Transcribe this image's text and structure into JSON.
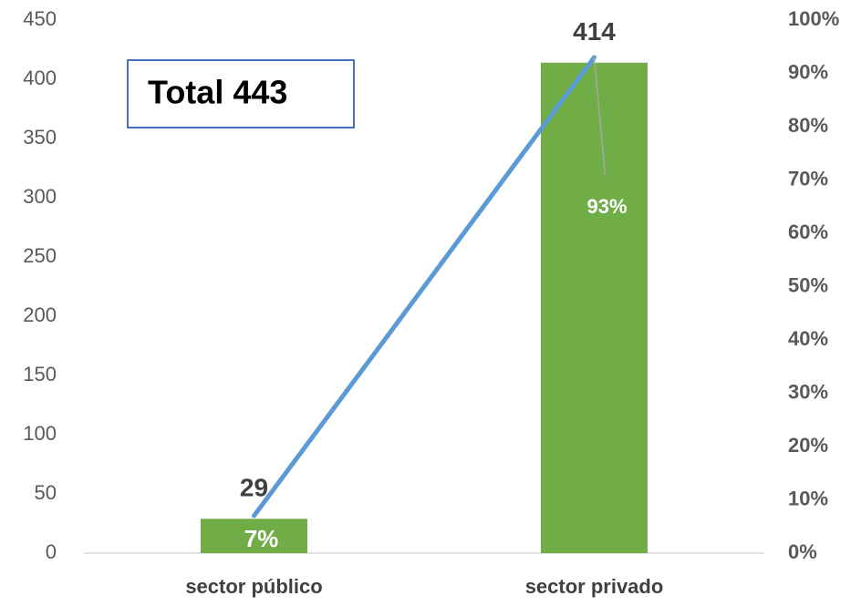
{
  "chart_data": {
    "type": "combo",
    "annotation": "Total 443",
    "categories": [
      "sector público",
      "sector privado"
    ],
    "series": [
      {
        "type": "bar",
        "color": "#70ad47",
        "values": [
          29,
          414
        ]
      },
      {
        "type": "line",
        "axis": "y2",
        "color": "#5b9bd5",
        "values": [
          7,
          93
        ],
        "value_labels": [
          "7%",
          "93%"
        ]
      }
    ],
    "ylim": [
      0,
      450
    ],
    "yticks": [
      0,
      50,
      100,
      150,
      200,
      250,
      300,
      350,
      400,
      450
    ],
    "y2lim": [
      0,
      100
    ],
    "y2ticks": [
      {
        "value": 0,
        "label": "0%"
      },
      {
        "value": 10,
        "label": "10%"
      },
      {
        "value": 20,
        "label": "20%"
      },
      {
        "value": 30,
        "label": "30%"
      },
      {
        "value": 40,
        "label": "40%"
      },
      {
        "value": 50,
        "label": "50%"
      },
      {
        "value": 60,
        "label": "60%"
      },
      {
        "value": 70,
        "label": "70%"
      },
      {
        "value": 80,
        "label": "80%"
      },
      {
        "value": 90,
        "label": "90%"
      },
      {
        "value": 100,
        "label": "100%"
      }
    ],
    "grid": false
  }
}
